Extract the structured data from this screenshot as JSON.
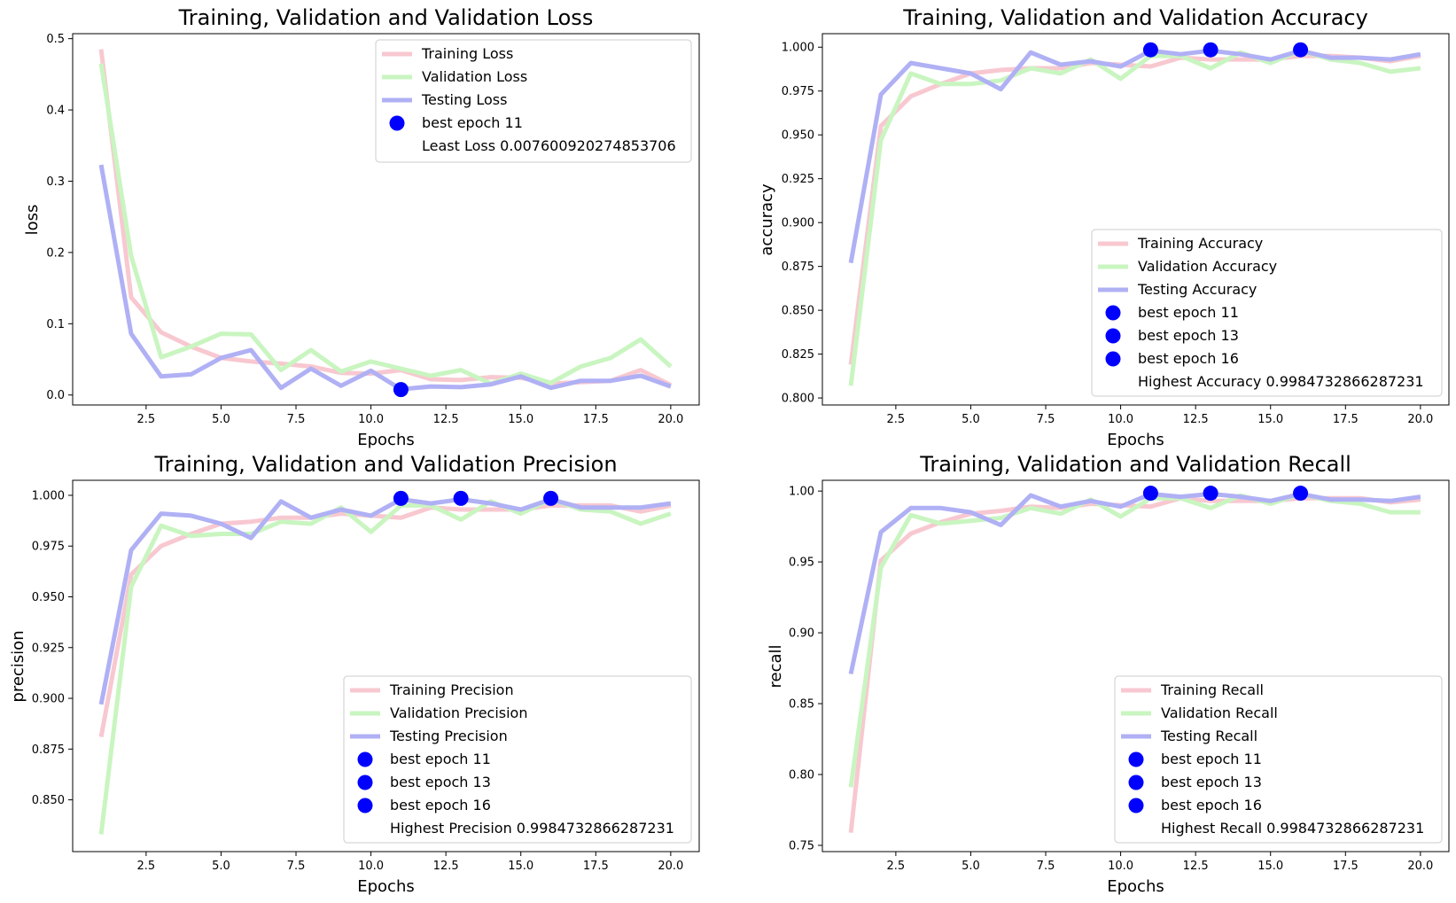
{
  "chart_data": [
    {
      "type": "line",
      "title": "Training, Validation and Validation Loss",
      "xlabel": "Epochs",
      "ylabel": "loss",
      "xlim": [
        0.05,
        20.95
      ],
      "ylim": [
        -0.014,
        0.507
      ],
      "xticks": [
        2.5,
        5.0,
        7.5,
        10.0,
        12.5,
        15.0,
        17.5,
        20.0
      ],
      "xtick_labels": [
        "2.5",
        "5.0",
        "7.5",
        "10.0",
        "12.5",
        "15.0",
        "17.5",
        "20.0"
      ],
      "yticks": [
        0.0,
        0.1,
        0.2,
        0.3,
        0.4,
        0.5
      ],
      "ytick_labels": [
        "0.0",
        "0.1",
        "0.2",
        "0.3",
        "0.4",
        "0.5"
      ],
      "x": [
        1,
        2,
        3,
        4,
        5,
        6,
        7,
        8,
        9,
        10,
        11,
        12,
        13,
        14,
        15,
        16,
        17,
        18,
        19,
        20
      ],
      "series": [
        {
          "name": "Training Loss",
          "color": "#f8c8d0",
          "values": [
            0.485,
            0.137,
            0.088,
            0.068,
            0.052,
            0.047,
            0.044,
            0.04,
            0.031,
            0.03,
            0.035,
            0.022,
            0.021,
            0.025,
            0.024,
            0.016,
            0.018,
            0.02,
            0.035,
            0.014
          ]
        },
        {
          "name": "Validation Loss",
          "color": "#c9f5c0",
          "values": [
            0.465,
            0.195,
            0.053,
            0.068,
            0.086,
            0.085,
            0.035,
            0.063,
            0.033,
            0.047,
            0.037,
            0.027,
            0.035,
            0.016,
            0.03,
            0.017,
            0.04,
            0.052,
            0.078,
            0.04
          ]
        },
        {
          "name": "Testing Loss",
          "color": "#b0b0f5",
          "values": [
            0.323,
            0.086,
            0.026,
            0.029,
            0.052,
            0.063,
            0.01,
            0.037,
            0.013,
            0.034,
            0.008,
            0.012,
            0.011,
            0.015,
            0.026,
            0.01,
            0.02,
            0.02,
            0.027,
            0.012
          ]
        }
      ],
      "markers": [
        {
          "name": "best epoch 11",
          "x": 11,
          "y": 0.0076,
          "color": "#0000ff"
        }
      ],
      "legend_extra": "Least Loss 0.007600920274853706",
      "legend_position": "upper-right",
      "grid": false
    },
    {
      "type": "line",
      "title": "Training, Validation and Validation Accuracy",
      "xlabel": "Epochs",
      "ylabel": "accuracy",
      "xlim": [
        0.05,
        20.95
      ],
      "ylim": [
        0.796,
        1.0077
      ],
      "xticks": [
        2.5,
        5.0,
        7.5,
        10.0,
        12.5,
        15.0,
        17.5,
        20.0
      ],
      "xtick_labels": [
        "2.5",
        "5.0",
        "7.5",
        "10.0",
        "12.5",
        "15.0",
        "17.5",
        "20.0"
      ],
      "yticks": [
        0.8,
        0.825,
        0.85,
        0.875,
        0.9,
        0.925,
        0.95,
        0.975,
        1.0
      ],
      "ytick_labels": [
        "0.800",
        "0.825",
        "0.850",
        "0.875",
        "0.900",
        "0.925",
        "0.950",
        "0.975",
        "1.000"
      ],
      "x": [
        1,
        2,
        3,
        4,
        5,
        6,
        7,
        8,
        9,
        10,
        11,
        12,
        13,
        14,
        15,
        16,
        17,
        18,
        19,
        20
      ],
      "series": [
        {
          "name": "Training Accuracy",
          "color": "#f8c8d0",
          "values": [
            0.819,
            0.955,
            0.972,
            0.979,
            0.985,
            0.987,
            0.988,
            0.988,
            0.991,
            0.99,
            0.989,
            0.994,
            0.993,
            0.993,
            0.993,
            0.995,
            0.995,
            0.994,
            0.992,
            0.995
          ]
        },
        {
          "name": "Validation Accuracy",
          "color": "#c9f5c0",
          "values": [
            0.807,
            0.947,
            0.985,
            0.979,
            0.979,
            0.981,
            0.988,
            0.985,
            0.993,
            0.982,
            0.995,
            0.995,
            0.988,
            0.997,
            0.991,
            0.998,
            0.993,
            0.991,
            0.986,
            0.988
          ]
        },
        {
          "name": "Testing Accuracy",
          "color": "#b0b0f5",
          "values": [
            0.877,
            0.973,
            0.991,
            0.988,
            0.985,
            0.976,
            0.997,
            0.99,
            0.992,
            0.989,
            0.998,
            0.996,
            0.998,
            0.996,
            0.993,
            0.998,
            0.994,
            0.994,
            0.993,
            0.996
          ]
        }
      ],
      "markers": [
        {
          "name": "best epoch 11",
          "x": 11,
          "y": 0.9985,
          "color": "#0000ff"
        },
        {
          "name": "best epoch 13",
          "x": 13,
          "y": 0.9985,
          "color": "#0000ff"
        },
        {
          "name": "best epoch 16",
          "x": 16,
          "y": 0.9985,
          "color": "#0000ff"
        }
      ],
      "legend_extra": "Highest Accuracy 0.9984732866287231",
      "legend_position": "lower-right",
      "grid": false
    },
    {
      "type": "line",
      "title": "Training, Validation and Validation Precision",
      "xlabel": "Epochs",
      "ylabel": "precision",
      "xlim": [
        0.05,
        20.95
      ],
      "ylim": [
        0.8245,
        1.0074
      ],
      "xticks": [
        2.5,
        5.0,
        7.5,
        10.0,
        12.5,
        15.0,
        17.5,
        20.0
      ],
      "xtick_labels": [
        "2.5",
        "5.0",
        "7.5",
        "10.0",
        "12.5",
        "15.0",
        "17.5",
        "20.0"
      ],
      "yticks": [
        0.85,
        0.875,
        0.9,
        0.925,
        0.95,
        0.975,
        1.0
      ],
      "ytick_labels": [
        "0.850",
        "0.875",
        "0.900",
        "0.925",
        "0.950",
        "0.975",
        "1.000"
      ],
      "x": [
        1,
        2,
        3,
        4,
        5,
        6,
        7,
        8,
        9,
        10,
        11,
        12,
        13,
        14,
        15,
        16,
        17,
        18,
        19,
        20
      ],
      "series": [
        {
          "name": "Training Precision",
          "color": "#f8c8d0",
          "values": [
            0.881,
            0.961,
            0.975,
            0.981,
            0.986,
            0.987,
            0.989,
            0.989,
            0.991,
            0.99,
            0.989,
            0.994,
            0.993,
            0.993,
            0.993,
            0.995,
            0.995,
            0.995,
            0.992,
            0.995
          ]
        },
        {
          "name": "Validation Precision",
          "color": "#c9f5c0",
          "values": [
            0.833,
            0.955,
            0.985,
            0.98,
            0.981,
            0.981,
            0.987,
            0.986,
            0.994,
            0.982,
            0.995,
            0.995,
            0.988,
            0.997,
            0.991,
            0.998,
            0.993,
            0.992,
            0.986,
            0.991
          ]
        },
        {
          "name": "Testing Precision",
          "color": "#b0b0f5",
          "values": [
            0.897,
            0.973,
            0.991,
            0.99,
            0.986,
            0.979,
            0.997,
            0.989,
            0.993,
            0.99,
            0.998,
            0.996,
            0.998,
            0.996,
            0.993,
            0.998,
            0.994,
            0.994,
            0.994,
            0.996
          ]
        }
      ],
      "markers": [
        {
          "name": "best epoch 11",
          "x": 11,
          "y": 0.9985,
          "color": "#0000ff"
        },
        {
          "name": "best epoch 13",
          "x": 13,
          "y": 0.9985,
          "color": "#0000ff"
        },
        {
          "name": "best epoch 16",
          "x": 16,
          "y": 0.9985,
          "color": "#0000ff"
        }
      ],
      "legend_extra": "Highest Precision 0.9984732866287231",
      "legend_position": "lower-right",
      "grid": false
    },
    {
      "type": "line",
      "title": "Training, Validation and Validation Recall",
      "xlabel": "Epochs",
      "ylabel": "recall",
      "xlim": [
        0.05,
        20.95
      ],
      "ylim": [
        0.7456,
        1.0076
      ],
      "xticks": [
        2.5,
        5.0,
        7.5,
        10.0,
        12.5,
        15.0,
        17.5,
        20.0
      ],
      "xtick_labels": [
        "2.5",
        "5.0",
        "7.5",
        "10.0",
        "12.5",
        "15.0",
        "17.5",
        "20.0"
      ],
      "yticks": [
        0.75,
        0.8,
        0.85,
        0.9,
        0.95,
        1.0
      ],
      "ytick_labels": [
        "0.75",
        "0.80",
        "0.85",
        "0.90",
        "0.95",
        "1.00"
      ],
      "x": [
        1,
        2,
        3,
        4,
        5,
        6,
        7,
        8,
        9,
        10,
        11,
        12,
        13,
        14,
        15,
        16,
        17,
        18,
        19,
        20
      ],
      "series": [
        {
          "name": "Training Recall",
          "color": "#f8c8d0",
          "values": [
            0.759,
            0.951,
            0.97,
            0.978,
            0.984,
            0.986,
            0.989,
            0.988,
            0.991,
            0.99,
            0.989,
            0.995,
            0.993,
            0.993,
            0.993,
            0.995,
            0.995,
            0.995,
            0.992,
            0.994
          ]
        },
        {
          "name": "Validation Recall",
          "color": "#c9f5c0",
          "values": [
            0.791,
            0.946,
            0.983,
            0.977,
            0.979,
            0.981,
            0.988,
            0.984,
            0.994,
            0.982,
            0.995,
            0.995,
            0.988,
            0.997,
            0.991,
            0.998,
            0.993,
            0.991,
            0.985,
            0.985
          ]
        },
        {
          "name": "Testing Recall",
          "color": "#b0b0f5",
          "values": [
            0.871,
            0.971,
            0.988,
            0.988,
            0.985,
            0.976,
            0.997,
            0.989,
            0.993,
            0.989,
            0.998,
            0.996,
            0.998,
            0.996,
            0.993,
            0.998,
            0.994,
            0.994,
            0.993,
            0.996
          ]
        }
      ],
      "markers": [
        {
          "name": "best epoch 11",
          "x": 11,
          "y": 0.9985,
          "color": "#0000ff"
        },
        {
          "name": "best epoch 13",
          "x": 13,
          "y": 0.9985,
          "color": "#0000ff"
        },
        {
          "name": "best epoch 16",
          "x": 16,
          "y": 0.9985,
          "color": "#0000ff"
        }
      ],
      "legend_extra": "Highest Recall 0.9984732866287231",
      "legend_position": "lower-right",
      "grid": false
    }
  ]
}
